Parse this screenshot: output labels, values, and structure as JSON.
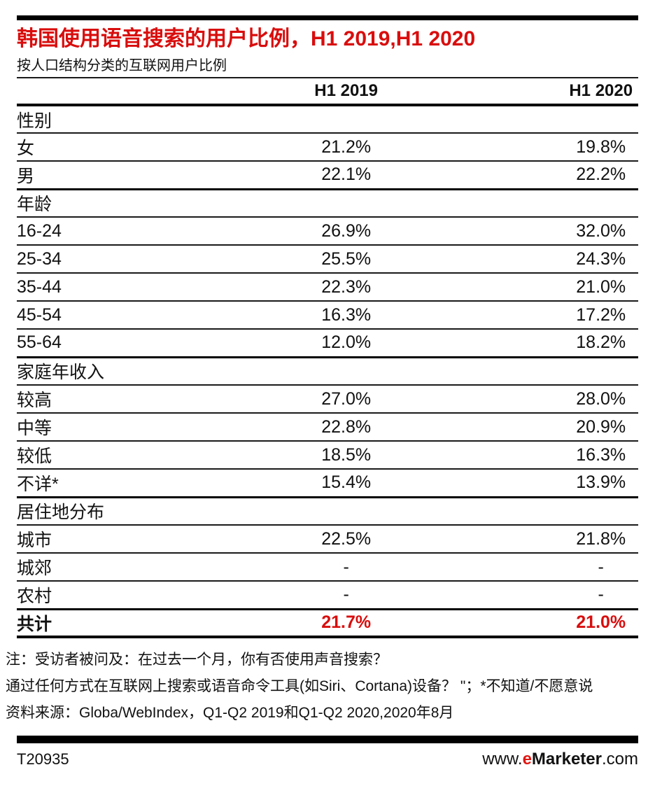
{
  "colors": {
    "accent_red": "#d90d0d",
    "logo_red": "#e01712",
    "rule_black": "#000000",
    "background": "#ffffff"
  },
  "chart_data": {
    "type": "table",
    "title": "韩国使用语音搜索的用户比例，H1 2019,H1 2020",
    "subtitle": "按人口结构分类的互联网用户比例",
    "col_headers": [
      "H1 2019",
      "H1 2020"
    ],
    "sections": [
      {
        "label": "性别",
        "rows": [
          [
            "女",
            "21.2%",
            "19.8%"
          ],
          [
            "男",
            "22.1%",
            "22.2%"
          ]
        ]
      },
      {
        "label": "年龄",
        "rows": [
          [
            "16-24",
            "26.9%",
            "32.0%"
          ],
          [
            "25-34",
            "25.5%",
            "24.3%"
          ],
          [
            "35-44",
            "22.3%",
            "21.0%"
          ],
          [
            "45-54",
            "16.3%",
            "17.2%"
          ],
          [
            "55-64",
            "12.0%",
            "18.2%"
          ]
        ]
      },
      {
        "label": "家庭年收入",
        "rows": [
          [
            "较高",
            "27.0%",
            "28.0%"
          ],
          [
            "中等",
            "22.8%",
            "20.9%"
          ],
          [
            "较低",
            "18.5%",
            "16.3%"
          ],
          [
            "不详*",
            "15.4%",
            "13.9%"
          ]
        ]
      },
      {
        "label": "居住地分布",
        "rows": [
          [
            "城市",
            "22.5%",
            "21.8%"
          ],
          [
            "城郊",
            "-",
            "-"
          ],
          [
            "农村",
            "-",
            "-"
          ]
        ]
      }
    ],
    "total": [
      "共计",
      "21.7%",
      "21.0%"
    ]
  },
  "notes": [
    "注：受访者被问及：在过去一个月，你有否使用声音搜索？",
    "通过任何方式在互联网上搜索或语音命令工具(如Siri、Cortana)设备？ \"；*不知道/不愿意说",
    "资料来源：Globa/WebIndex，Q1-Q2 2019和Q1-Q2 2020,2020年8月"
  ],
  "footer": {
    "chart_id": "T20935",
    "logo": {
      "www": "www.",
      "e": "e",
      "marketer": "Marketer",
      "com": ".com"
    }
  }
}
